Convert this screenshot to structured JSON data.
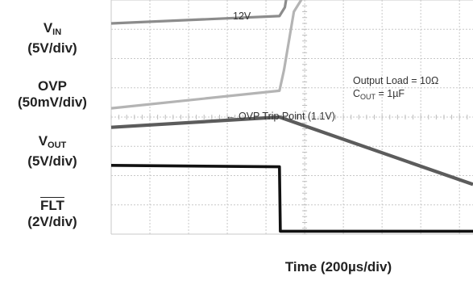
{
  "chart_data": {
    "type": "line",
    "title": "",
    "xlabel": "Time (200µs/div)",
    "x_unit": "µs",
    "xlim": [
      0,
      2000
    ],
    "grid": true,
    "grid_divisions": {
      "x": 10,
      "y": 8
    },
    "channels": [
      {
        "key": "vin",
        "name_main": "V",
        "name_sub": "IN",
        "scale": "(5V/div)"
      },
      {
        "key": "ovp",
        "name_main": "OVP",
        "name_sub": "",
        "scale": "(50mV/div)"
      },
      {
        "key": "vout",
        "name_main": "V",
        "name_sub": "OUT",
        "scale": "(5V/div)"
      },
      {
        "key": "flt",
        "name_main": "FLT",
        "name_sub": "",
        "scale": "(2V/div)",
        "overline": true
      }
    ],
    "series": [
      {
        "key": "vin",
        "name": "VIN",
        "color": "#8c8c8c",
        "x": [
          0,
          930,
          960,
          1010,
          1060,
          1200,
          2000
        ],
        "y": [
          3.2,
          3.45,
          3.75,
          5.6,
          6.1,
          6.16,
          6.2
        ]
      },
      {
        "key": "ovp",
        "name": "OVP",
        "color": "#b4b4b4",
        "x": [
          0,
          930,
          955,
          1010,
          1060,
          1200,
          2000
        ],
        "y": [
          0.3,
          0.9,
          1.6,
          3.6,
          4.1,
          4.2,
          4.25
        ]
      },
      {
        "key": "vout",
        "name": "VOUT",
        "color": "#5c5c5c",
        "x": [
          0,
          930,
          2000
        ],
        "y": [
          -0.35,
          0.0,
          -2.3
        ]
      },
      {
        "key": "flt",
        "name": "FLT",
        "color": "#111111",
        "x": [
          0,
          930,
          935,
          2000
        ],
        "y": [
          -1.65,
          -1.7,
          -3.9,
          -3.9
        ]
      }
    ],
    "annotations": [
      {
        "text": "12V"
      },
      {
        "text": "Output Load = 10Ω"
      },
      {
        "text": "C",
        "sub": "OUT",
        "rest": " = 1µF"
      },
      {
        "text": "← OVP Trip Point (1.1V)"
      }
    ]
  }
}
